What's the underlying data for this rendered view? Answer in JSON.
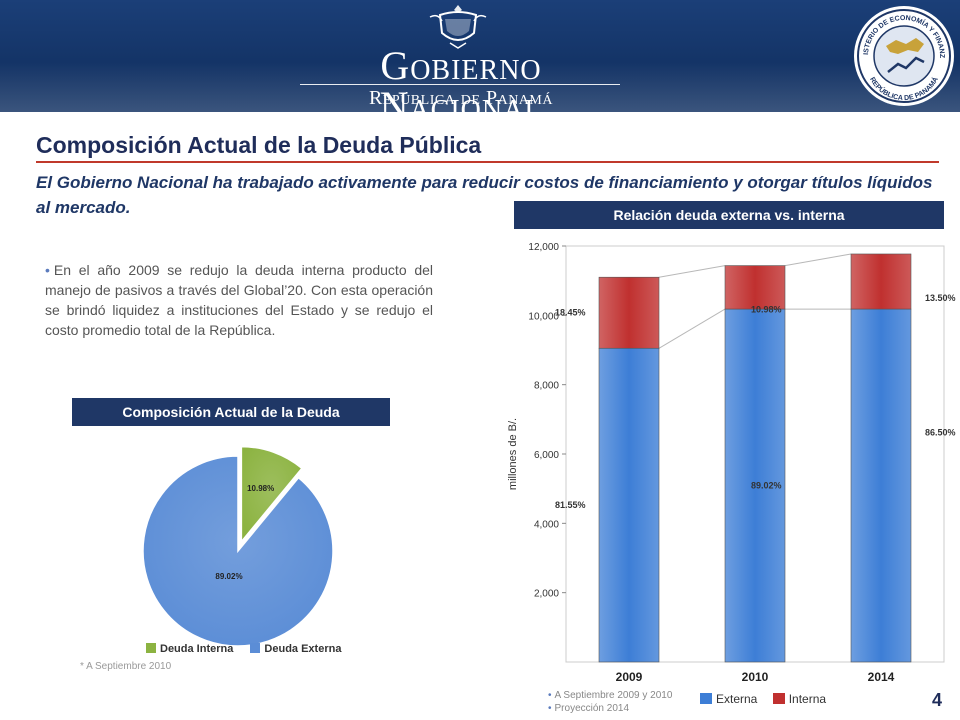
{
  "header": {
    "title": "Gobierno Nacional",
    "subtitle": "República de Panamá",
    "seal_top_text": "MINISTERIO DE ECONOMÍA Y FINANZAS",
    "seal_bottom_text": "REPÚBLICA DE PANAMÁ",
    "colors": {
      "banner": "#143467"
    }
  },
  "slide": {
    "title": "Composición Actual de la Deuda Pública",
    "intro": "El Gobierno Nacional ha trabajado activamente para reducir costos de financiamiento y otorgar títulos líquidos al mercado.",
    "bullet": "En el año 2009 se redujo la deuda interna producto del manejo de pasivos a través del Global’20. Con esta operación se brindó liquidez a instituciones del Estado y se redujo el costo promedio total de la República.",
    "page_number": "4",
    "colors": {
      "accent_rule": "#c0392b",
      "header_fill": "#1f3766"
    }
  },
  "pie": {
    "header": "Composición Actual de la Deuda",
    "note": "* A Septiembre 2010",
    "legend": [
      "Deuda Interna",
      "Deuda Externa"
    ]
  },
  "bar": {
    "header": "Relación deuda externa vs. interna",
    "footnotes": [
      "A Septiembre 2009 y 2010",
      "Proyección 2014"
    ],
    "legend": [
      "Externa",
      "Interna"
    ]
  },
  "chart_data": [
    {
      "type": "pie",
      "slices": [
        {
          "label": "Deuda Interna",
          "value": 10.98,
          "data_label": "10.98%",
          "color": "#8cb341",
          "exploded": true
        },
        {
          "label": "Deuda Externa",
          "value": 89.02,
          "data_label": "89.02%",
          "color": "#5b8dd6",
          "exploded": false
        }
      ]
    },
    {
      "type": "bar",
      "stacked": true,
      "categories": [
        "2009",
        "2010",
        "2014"
      ],
      "ylabel": "millones de B/.",
      "ylim": [
        0,
        12000
      ],
      "yticks": [
        2000,
        4000,
        6000,
        8000,
        10000,
        12000
      ],
      "ytick_labels": [
        "2,000",
        "4,000",
        "6,000",
        "8,000",
        "10,000",
        "12,000"
      ],
      "series": [
        {
          "name": "Externa",
          "values": [
            9050,
            10180,
            10180
          ],
          "labels": [
            "81.55%",
            "89.02%",
            "86.50%"
          ],
          "color": "#3d7ed6"
        },
        {
          "name": "Interna",
          "values": [
            2050,
            1255,
            1590
          ],
          "labels": [
            "18.45%",
            "10.98%",
            "13.50%"
          ],
          "color": "#c0302f"
        }
      ]
    }
  ]
}
